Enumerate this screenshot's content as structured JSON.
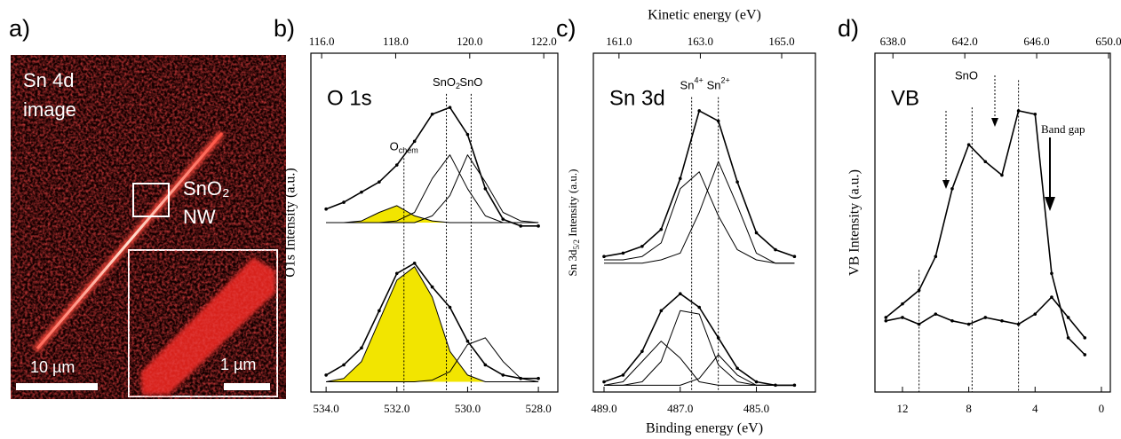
{
  "image_panel": {
    "panel_label": "a)",
    "title": [
      "Sn 4d",
      "image"
    ],
    "roi_label": [
      "SnO₂",
      "NW"
    ],
    "scale_bar": "10 µm",
    "inset_scale_bar": "1 µm"
  },
  "axis_titles": {
    "top": "Kinetic energy (eV)",
    "bottom": "Binding energy (eV)"
  },
  "extra_labels": {
    "sno": "SnO",
    "band_gap": "Band gap"
  },
  "chart_data": [
    {
      "type": "line",
      "panel_label": "b)",
      "label": "O 1s",
      "ylabel": "O1s Intensity (a.u.)",
      "xlim": [
        534.43,
        527.45
      ],
      "xticks": [
        {
          "value": 534,
          "label": "534.0"
        },
        {
          "value": 532,
          "label": "532.0"
        },
        {
          "value": 530,
          "label": "530.0"
        },
        {
          "value": 528,
          "label": "528.0"
        }
      ],
      "x2lim": [
        115.71,
        122.38
      ],
      "x2ticks": [
        {
          "value": 116,
          "label": "116.0"
        },
        {
          "value": 118,
          "label": "118.0"
        },
        {
          "value": 120,
          "label": "120.0"
        },
        {
          "value": 122,
          "label": "122.0"
        }
      ],
      "ylim": [
        0,
        10
      ],
      "x": [
        534,
        533.5,
        533,
        532.5,
        532,
        531.5,
        531,
        530.5,
        530,
        529.5,
        529,
        528.5,
        528
      ],
      "series": [
        {
          "color": "#000",
          "fill": "#f2e500",
          "values": [
            5,
            5,
            5.05,
            5.3,
            5.5,
            5.2,
            5.05,
            5,
            5,
            5,
            5,
            5,
            5
          ]
        },
        {
          "color": "#000",
          "values": [
            5,
            5,
            5,
            5,
            5.05,
            5.3,
            6.3,
            7.0,
            6.0,
            5.2,
            5.0,
            5,
            5
          ]
        },
        {
          "color": "#000",
          "values": [
            5,
            5,
            5,
            5,
            5,
            5,
            5.2,
            5.8,
            7.0,
            6.2,
            5.3,
            5.05,
            5
          ]
        },
        {
          "color": "#000",
          "markers": true,
          "values": [
            5.4,
            5.6,
            5.9,
            6.2,
            6.7,
            7.4,
            8.2,
            8.4,
            7.6,
            6.0,
            5.1,
            4.9,
            4.9
          ]
        },
        {
          "color": "#000",
          "fill": "#f2e500",
          "values": [
            0.3,
            0.4,
            0.9,
            2.1,
            3.3,
            3.7,
            2.8,
            1.2,
            0.5,
            0.3,
            0.3,
            0.3,
            0.3
          ]
        },
        {
          "color": "#000",
          "values": [
            0.3,
            0.3,
            0.3,
            0.3,
            0.3,
            0.3,
            0.35,
            0.6,
            1.4,
            1.6,
            0.9,
            0.4,
            0.3
          ]
        },
        {
          "color": "#000",
          "markers": true,
          "values": [
            0.5,
            0.8,
            1.3,
            2.4,
            3.5,
            3.8,
            3.1,
            2.5,
            1.5,
            0.8,
            0.5,
            0.4,
            0.4
          ]
        }
      ],
      "annotations": [
        {
          "x": 531.8,
          "y": 6.9,
          "label": "O",
          "sub": "chem"
        },
        {
          "x": 530.6,
          "y": 8.8,
          "label": "SnO",
          "sub": "2"
        },
        {
          "x": 529.9,
          "y": 8.8,
          "label": "SnO"
        }
      ]
    },
    {
      "type": "line",
      "panel_label": "c)",
      "label": "Sn 3d",
      "ylabel": {
        "text": "Sn 3d",
        "sub": "5/2",
        "rest": " Intensity (a.u.)"
      },
      "xlim": [
        489.28,
        483.45
      ],
      "xticks": [
        {
          "value": 489,
          "label": "489.0"
        },
        {
          "value": 487,
          "label": "487.0"
        },
        {
          "value": 485,
          "label": "485.0"
        }
      ],
      "x2lim": [
        160.37,
        165.83
      ],
      "x2ticks": [
        {
          "value": 161,
          "label": "161.0"
        },
        {
          "value": 163,
          "label": "163.0"
        },
        {
          "value": 165,
          "label": "165.0"
        }
      ],
      "ylim": [
        0,
        10
      ],
      "x": [
        489,
        488.5,
        488,
        487.5,
        487,
        486.5,
        486,
        485.5,
        485,
        484.5,
        484
      ],
      "series": [
        {
          "color": "#000",
          "values": [
            3.9,
            3.9,
            4.0,
            4.4,
            6.0,
            6.5,
            5.2,
            4.2,
            3.9,
            3.8,
            3.8
          ]
        },
        {
          "color": "#000",
          "values": [
            3.8,
            3.8,
            3.8,
            3.9,
            4.1,
            5.3,
            6.8,
            5.5,
            4.1,
            3.8,
            3.8
          ]
        },
        {
          "color": "#000",
          "markers": true,
          "values": [
            4.0,
            4.1,
            4.3,
            4.8,
            6.3,
            8.3,
            8.0,
            6.2,
            4.7,
            4.2,
            4.0
          ]
        },
        {
          "color": "#000",
          "values": [
            0.2,
            0.3,
            0.9,
            1.5,
            1.0,
            0.3,
            0.2,
            0.2,
            0.2,
            0.2,
            0.2
          ]
        },
        {
          "color": "#000",
          "values": [
            0.2,
            0.2,
            0.3,
            0.9,
            2.4,
            2.3,
            0.8,
            0.3,
            0.2,
            0.2,
            0.2
          ]
        },
        {
          "color": "#000",
          "values": [
            0.2,
            0.2,
            0.2,
            0.2,
            0.2,
            0.4,
            1.1,
            0.5,
            0.2,
            0.2,
            0.2
          ]
        },
        {
          "color": "#000",
          "markers": true,
          "values": [
            0.3,
            0.5,
            1.2,
            2.4,
            2.9,
            2.5,
            1.6,
            0.7,
            0.3,
            0.2,
            0.2
          ]
        }
      ],
      "annotations": [
        {
          "x": 486.7,
          "y": 8.7,
          "label": "Sn",
          "sup": "4+"
        },
        {
          "x": 486.0,
          "y": 8.7,
          "label": "Sn",
          "sup": "2+"
        }
      ]
    },
    {
      "type": "line",
      "panel_label": "d)",
      "label": "VB",
      "ylabel": "VB Intensity (a.u.)",
      "xlim": [
        13.66,
        -0.54
      ],
      "xticks": [
        12,
        8,
        4,
        0
      ],
      "x2lim": [
        637,
        650.1
      ],
      "x2ticks": [
        {
          "value": 638,
          "label": "638.0"
        },
        {
          "value": 642,
          "label": "642.0"
        },
        {
          "value": 646,
          "label": "646.0"
        },
        {
          "value": 650,
          "label": "650.0"
        }
      ],
      "ylim": [
        0,
        10
      ],
      "x": [
        13,
        12,
        11,
        10,
        9,
        8,
        7,
        6,
        5,
        4,
        3,
        2,
        1
      ],
      "series": [
        {
          "color": "#000",
          "markers": true,
          "values": [
            2.2,
            2.6,
            3.0,
            4.0,
            6.0,
            7.3,
            6.8,
            6.4,
            8.3,
            8.2,
            3.5,
            1.6,
            1.1
          ]
        },
        {
          "color": "#000",
          "markers": true,
          "values": [
            2.1,
            2.2,
            2.0,
            2.3,
            2.1,
            2.0,
            2.2,
            2.1,
            2.0,
            2.3,
            2.8,
            2.2,
            1.6
          ]
        }
      ],
      "annotations": [
        {
          "x": 11,
          "y": 3.6
        },
        {
          "x": 7.8,
          "y": 8.4
        },
        {
          "x": 5.0,
          "y": 9.2
        }
      ]
    }
  ]
}
